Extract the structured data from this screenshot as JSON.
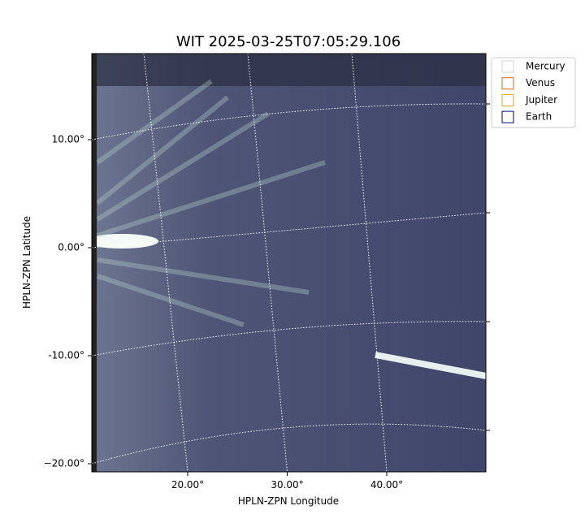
{
  "chart_data": {
    "type": "image",
    "title": "WIT 2025-03-25T07:05:29.106",
    "x_label": "HPLN-ZPN Longitude",
    "y_label": "HPLN-ZPN Latitude",
    "xticks": [
      {
        "value": 20,
        "label": "20.00°"
      },
      {
        "value": 30,
        "label": "30.00°"
      },
      {
        "value": 40,
        "label": "40.00°"
      }
    ],
    "yticks": [
      {
        "value": 10,
        "label": "10.00°"
      },
      {
        "value": 0,
        "label": "0.00°"
      },
      {
        "value": -10,
        "label": "-10.00°"
      },
      {
        "value": -20,
        "label": "−20.00°"
      }
    ],
    "grid": true,
    "legend_position": "outside-right",
    "legend": [
      {
        "name": "Mercury",
        "color": "#d3d3d3"
      },
      {
        "name": "Venus",
        "color": "#d2691e"
      },
      {
        "name": "Jupiter",
        "color": "#daa520"
      },
      {
        "name": "Earth",
        "color": "#000080"
      }
    ]
  }
}
